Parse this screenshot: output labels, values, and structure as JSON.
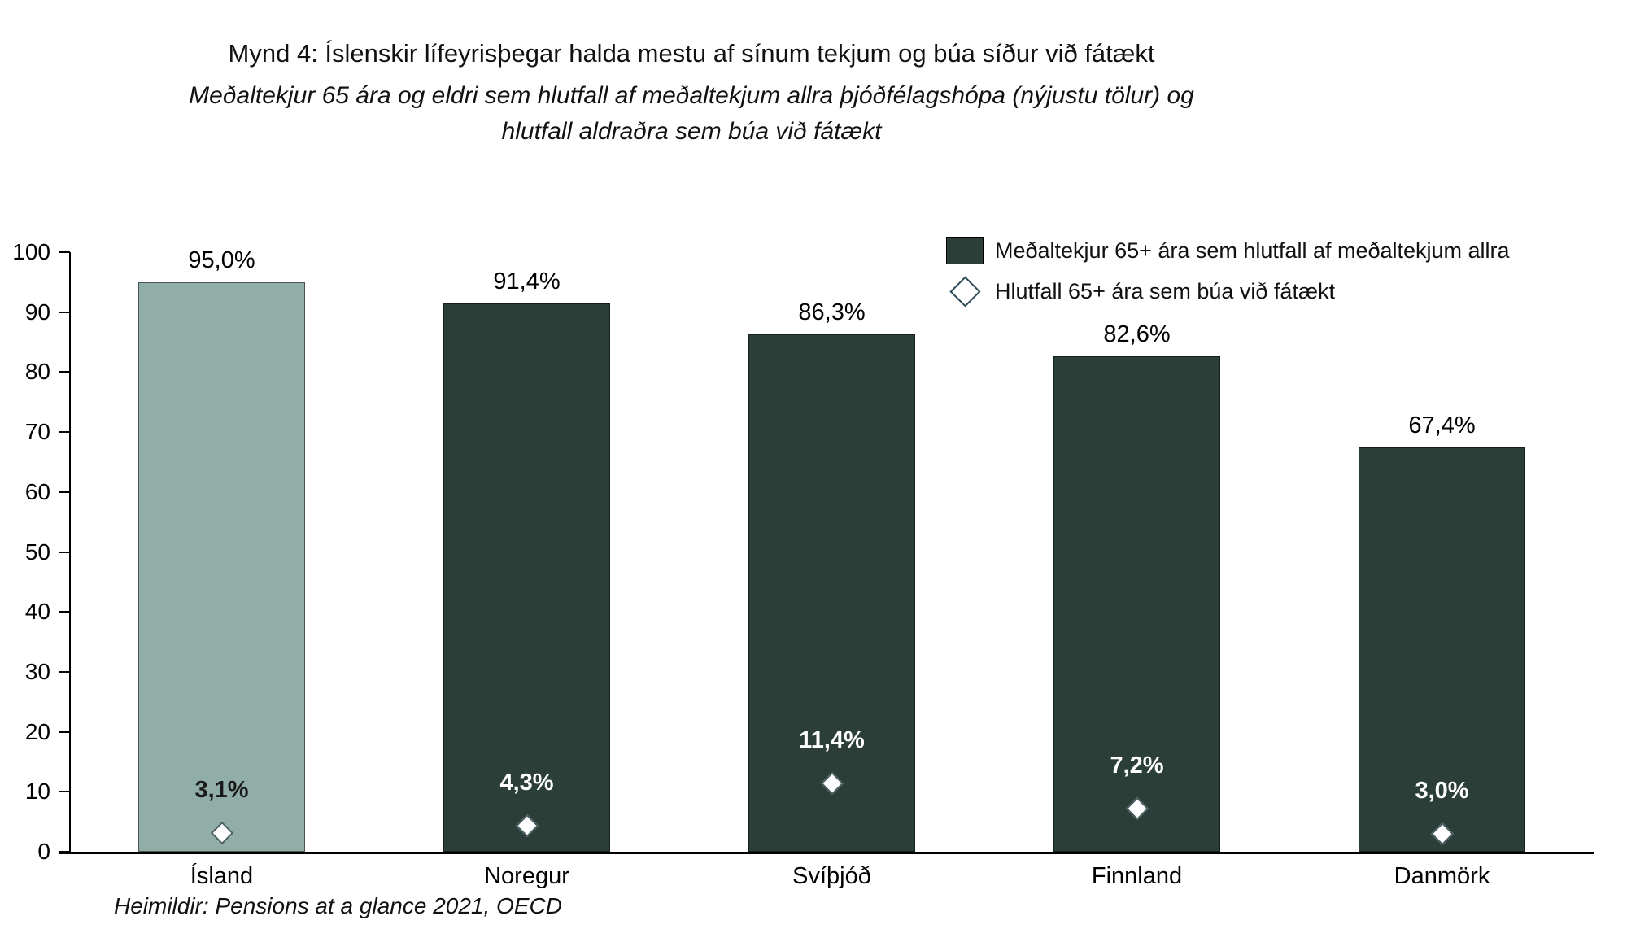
{
  "title": "Mynd 4: Íslenskir lífeyrisþegar halda mestu af sínum tekjum og búa síður við fátækt",
  "subtitle": "Meðaltekjur 65 ára og eldri sem hlutfall af meðaltekjum allra þjóðfélagshópa (nýjustu tölur) og hlutfall aldraðra sem búa við fátækt",
  "source": "Heimildir: Pensions at a glance 2021, OECD",
  "chart_data": {
    "type": "bar",
    "categories": [
      "Ísland",
      "Noregur",
      "Svíþjóð",
      "Finnland",
      "Danmörk"
    ],
    "series": [
      {
        "name": "Meðaltekjur 65+ ára sem hlutfall af meðaltekjum allra",
        "type": "bar",
        "values": [
          95.0,
          91.4,
          86.3,
          82.6,
          67.4
        ],
        "labels": [
          "95,0%",
          "91,4%",
          "86,3%",
          "82,6%",
          "67,4%"
        ],
        "point_colors": [
          "#90aea7",
          "#2b3f38",
          "#2b3f38",
          "#2b3f38",
          "#2b3f38"
        ]
      },
      {
        "name": "Hlutfall 65+ ára sem búa við fátækt",
        "type": "scatter",
        "marker": "diamond",
        "values": [
          3.1,
          4.3,
          11.4,
          7.2,
          3.0
        ],
        "labels": [
          "3,1%",
          "4,3%",
          "11,4%",
          "7,2%",
          "3,0%"
        ],
        "label_colors": [
          "#1a1a1a",
          "#ffffff",
          "#ffffff",
          "#ffffff",
          "#ffffff"
        ],
        "marker_fill": "#ffffff",
        "marker_border": "#4a5d63"
      }
    ],
    "ylim": [
      0,
      100
    ],
    "yticks": [
      0,
      10,
      20,
      30,
      40,
      50,
      60,
      70,
      80,
      90,
      100
    ],
    "grid": false,
    "legend_position": "top-right"
  }
}
